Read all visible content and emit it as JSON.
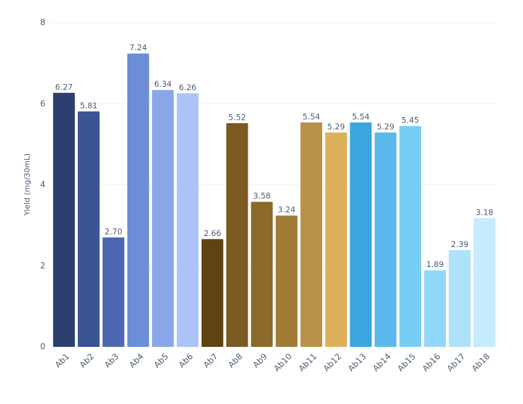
{
  "chart_data": {
    "type": "bar",
    "y_label": "Yield (mg/30mL)",
    "categories": [
      "Ab1",
      "Ab2",
      "Ab3",
      "Ab4",
      "Ab5",
      "Ab6",
      "Ab7",
      "Ab8",
      "Ab9",
      "Ab10",
      "Ab11",
      "Ab12",
      "Ab13",
      "Ab14",
      "Ab15",
      "Ab16",
      "Ab17",
      "Ab18"
    ],
    "values": [
      6.27,
      5.81,
      2.7,
      7.24,
      6.34,
      6.26,
      2.66,
      5.52,
      3.58,
      3.24,
      5.54,
      5.29,
      5.54,
      5.29,
      5.45,
      1.89,
      2.39,
      3.18
    ],
    "value_labels": [
      "6.27",
      "5.81",
      "2.70",
      "7.24",
      "6.34",
      "6.26",
      "2.66",
      "5.52",
      "3.58",
      "3.24",
      "5.54",
      "5.29",
      "5.54",
      "5.29",
      "5.45",
      "1.89",
      "2.39",
      "3.18"
    ],
    "colors": [
      "#2c3f6e",
      "#3a5494",
      "#4a68b0",
      "#6b8ed6",
      "#8aa8e8",
      "#abc4f5",
      "#5e4410",
      "#7a5a20",
      "#8b6a2a",
      "#a07b36",
      "#b8924a",
      "#ddb05a",
      "#3aa6e0",
      "#5bb8ec",
      "#78cdf5",
      "#92d8fa",
      "#aee2fb",
      "#c6ebfc"
    ],
    "ylim": [
      0,
      8
    ],
    "yticks": [
      0,
      2,
      4,
      6,
      8
    ],
    "grid": true
  }
}
